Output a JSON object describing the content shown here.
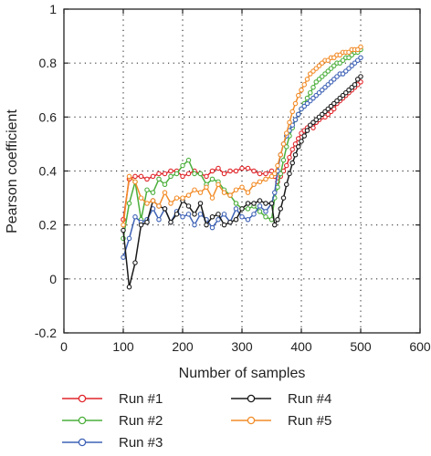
{
  "chart_data": {
    "type": "line",
    "title": "",
    "xlabel": "Number of samples",
    "ylabel": "Pearson coefficient",
    "xlim": [
      0,
      600
    ],
    "ylim": [
      -0.2,
      1
    ],
    "x_ticks": [
      "0",
      "100",
      "200",
      "300",
      "400",
      "500",
      "600"
    ],
    "y_ticks": [
      "-0.2",
      "0",
      "0.2",
      "0.4",
      "0.6",
      "0.8",
      "1"
    ],
    "grid": "dotted",
    "legend": "bottom, two columns",
    "series": [
      {
        "name": "Run #1",
        "color": "#e0262b",
        "x": [
          100,
          110,
          120,
          130,
          140,
          150,
          160,
          170,
          180,
          190,
          200,
          210,
          220,
          230,
          240,
          250,
          260,
          270,
          280,
          290,
          300,
          310,
          320,
          330,
          340,
          350,
          355,
          360,
          365,
          370,
          375,
          380,
          385,
          390,
          395,
          400,
          405,
          410,
          415,
          420,
          425,
          430,
          435,
          440,
          445,
          450,
          455,
          460,
          465,
          470,
          475,
          480,
          485,
          490,
          495,
          500
        ],
        "y": [
          0.22,
          0.37,
          0.38,
          0.38,
          0.37,
          0.38,
          0.39,
          0.39,
          0.4,
          0.4,
          0.38,
          0.39,
          0.4,
          0.39,
          0.38,
          0.4,
          0.41,
          0.39,
          0.4,
          0.4,
          0.41,
          0.41,
          0.4,
          0.39,
          0.39,
          0.4,
          0.38,
          0.36,
          0.38,
          0.4,
          0.42,
          0.45,
          0.48,
          0.5,
          0.52,
          0.54,
          0.55,
          0.56,
          0.57,
          0.56,
          0.58,
          0.59,
          0.6,
          0.6,
          0.61,
          0.62,
          0.63,
          0.65,
          0.66,
          0.67,
          0.68,
          0.69,
          0.7,
          0.71,
          0.72,
          0.73
        ]
      },
      {
        "name": "Run #2",
        "color": "#4caf3c",
        "x": [
          100,
          110,
          120,
          130,
          140,
          150,
          160,
          170,
          180,
          190,
          200,
          210,
          220,
          230,
          240,
          250,
          260,
          270,
          280,
          290,
          300,
          310,
          320,
          330,
          340,
          350,
          355,
          360,
          365,
          370,
          375,
          380,
          385,
          390,
          395,
          400,
          405,
          410,
          415,
          420,
          425,
          430,
          435,
          440,
          445,
          450,
          455,
          460,
          465,
          470,
          475,
          480,
          485,
          490,
          495,
          500
        ],
        "y": [
          0.15,
          0.28,
          0.36,
          0.22,
          0.33,
          0.32,
          0.37,
          0.35,
          0.38,
          0.39,
          0.42,
          0.44,
          0.39,
          0.39,
          0.35,
          0.37,
          0.36,
          0.33,
          0.31,
          0.28,
          0.26,
          0.26,
          0.27,
          0.25,
          0.23,
          0.22,
          0.3,
          0.34,
          0.39,
          0.44,
          0.49,
          0.53,
          0.56,
          0.59,
          0.61,
          0.63,
          0.65,
          0.67,
          0.69,
          0.71,
          0.73,
          0.74,
          0.75,
          0.76,
          0.77,
          0.78,
          0.79,
          0.8,
          0.8,
          0.81,
          0.82,
          0.82,
          0.83,
          0.84,
          0.84,
          0.85
        ]
      },
      {
        "name": "Run #3",
        "color": "#3e62b6",
        "x": [
          100,
          110,
          120,
          130,
          140,
          150,
          160,
          170,
          180,
          190,
          200,
          210,
          220,
          230,
          240,
          250,
          260,
          270,
          280,
          290,
          300,
          310,
          320,
          330,
          340,
          350,
          355,
          360,
          365,
          370,
          375,
          380,
          385,
          390,
          395,
          400,
          405,
          410,
          415,
          420,
          425,
          430,
          435,
          440,
          445,
          450,
          455,
          460,
          465,
          470,
          475,
          480,
          485,
          490,
          495,
          500
        ],
        "y": [
          0.08,
          0.15,
          0.23,
          0.21,
          0.22,
          0.26,
          0.22,
          0.26,
          0.21,
          0.25,
          0.23,
          0.24,
          0.2,
          0.24,
          0.22,
          0.19,
          0.22,
          0.24,
          0.21,
          0.26,
          0.23,
          0.22,
          0.24,
          0.27,
          0.25,
          0.28,
          0.32,
          0.4,
          0.46,
          0.5,
          0.53,
          0.55,
          0.57,
          0.59,
          0.61,
          0.63,
          0.64,
          0.65,
          0.66,
          0.67,
          0.68,
          0.69,
          0.7,
          0.71,
          0.72,
          0.73,
          0.74,
          0.75,
          0.76,
          0.76,
          0.77,
          0.78,
          0.79,
          0.8,
          0.81,
          0.82
        ]
      },
      {
        "name": "Run #4",
        "color": "#1a1a1a",
        "x": [
          100,
          110,
          120,
          130,
          140,
          150,
          160,
          170,
          180,
          190,
          200,
          210,
          220,
          230,
          240,
          250,
          260,
          270,
          280,
          290,
          300,
          310,
          320,
          330,
          340,
          350,
          355,
          360,
          365,
          370,
          375,
          380,
          385,
          390,
          395,
          400,
          405,
          410,
          415,
          420,
          425,
          430,
          435,
          440,
          445,
          450,
          455,
          460,
          465,
          470,
          475,
          480,
          485,
          490,
          495,
          500
        ],
        "y": [
          0.18,
          -0.03,
          0.06,
          0.2,
          0.21,
          0.29,
          0.27,
          0.26,
          0.21,
          0.24,
          0.29,
          0.27,
          0.24,
          0.28,
          0.2,
          0.23,
          0.24,
          0.2,
          0.21,
          0.22,
          0.26,
          0.28,
          0.28,
          0.29,
          0.28,
          0.28,
          0.2,
          0.22,
          0.26,
          0.3,
          0.35,
          0.39,
          0.43,
          0.46,
          0.49,
          0.51,
          0.53,
          0.55,
          0.57,
          0.58,
          0.59,
          0.6,
          0.61,
          0.62,
          0.63,
          0.64,
          0.65,
          0.66,
          0.67,
          0.68,
          0.69,
          0.7,
          0.71,
          0.72,
          0.74,
          0.75
        ]
      },
      {
        "name": "Run #5",
        "color": "#f28c28",
        "x": [
          100,
          110,
          120,
          130,
          140,
          150,
          160,
          170,
          180,
          190,
          200,
          210,
          220,
          230,
          240,
          250,
          260,
          270,
          280,
          290,
          300,
          310,
          320,
          330,
          340,
          350,
          355,
          360,
          365,
          370,
          375,
          380,
          385,
          390,
          395,
          400,
          405,
          410,
          415,
          420,
          425,
          430,
          435,
          440,
          445,
          450,
          455,
          460,
          465,
          470,
          475,
          480,
          485,
          490,
          495,
          500
        ],
        "y": [
          0.2,
          0.38,
          0.36,
          0.3,
          0.28,
          0.29,
          0.27,
          0.32,
          0.28,
          0.3,
          0.3,
          0.31,
          0.33,
          0.32,
          0.34,
          0.3,
          0.35,
          0.32,
          0.31,
          0.33,
          0.34,
          0.32,
          0.35,
          0.36,
          0.37,
          0.38,
          0.39,
          0.42,
          0.46,
          0.5,
          0.54,
          0.58,
          0.62,
          0.65,
          0.68,
          0.7,
          0.72,
          0.74,
          0.76,
          0.77,
          0.78,
          0.79,
          0.8,
          0.81,
          0.81,
          0.82,
          0.82,
          0.83,
          0.83,
          0.84,
          0.84,
          0.84,
          0.85,
          0.85,
          0.85,
          0.86
        ]
      }
    ]
  }
}
